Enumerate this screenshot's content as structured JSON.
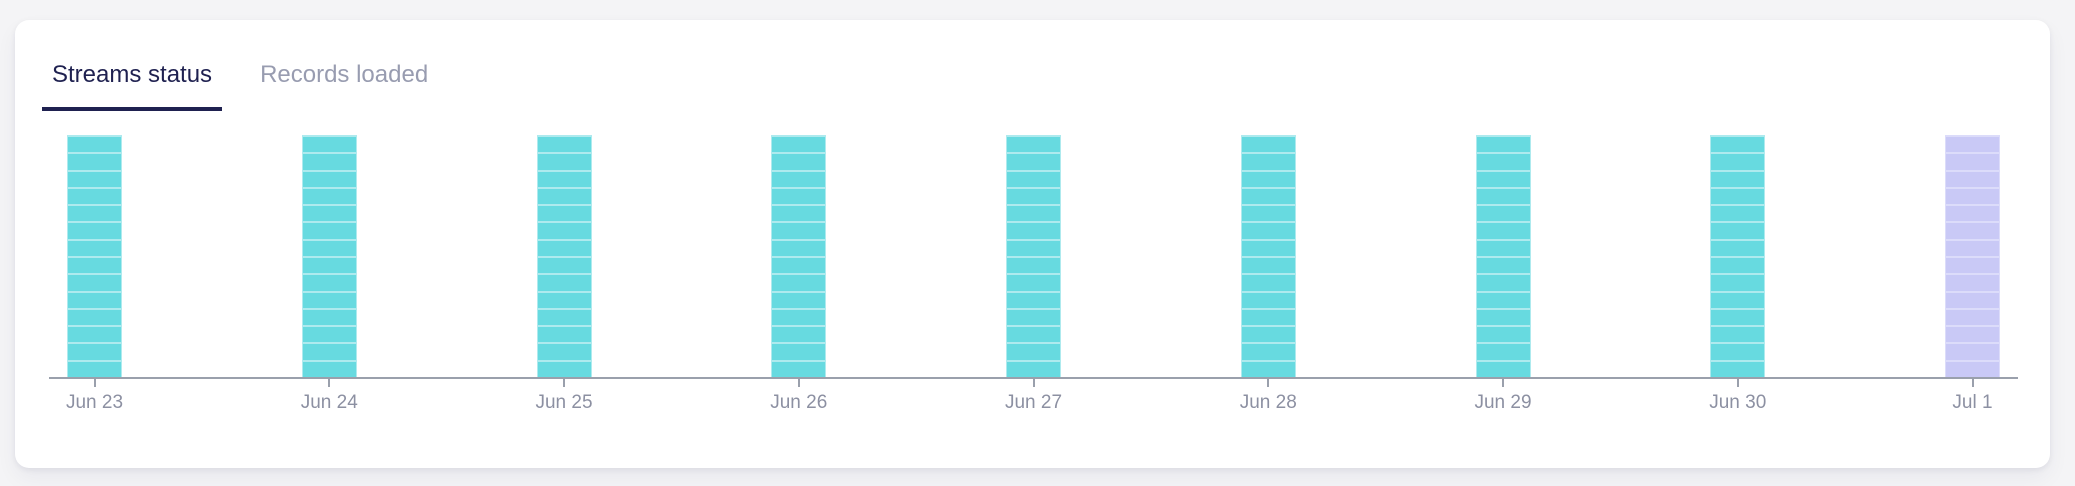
{
  "tabs": [
    {
      "label": "Streams status",
      "active": true
    },
    {
      "label": "Records loaded",
      "active": false
    }
  ],
  "chart_data": {
    "type": "bar",
    "subtype": "stacked-segment-status-bars",
    "title": "Streams status",
    "xlabel": "",
    "ylabel": "",
    "grid": false,
    "legend": "none",
    "categories": [
      "Jun 23",
      "Jun 24",
      "Jun 25",
      "Jun 26",
      "Jun 27",
      "Jun 28",
      "Jun 29",
      "Jun 30",
      "Jul 1"
    ],
    "bars": [
      {
        "label": "Jun 23",
        "segments": 14,
        "palette": "teal"
      },
      {
        "label": "Jun 24",
        "segments": 14,
        "palette": "teal"
      },
      {
        "label": "Jun 25",
        "segments": 14,
        "palette": "teal"
      },
      {
        "label": "Jun 26",
        "segments": 14,
        "palette": "teal"
      },
      {
        "label": "Jun 27",
        "segments": 14,
        "palette": "teal"
      },
      {
        "label": "Jun 28",
        "segments": 14,
        "palette": "teal"
      },
      {
        "label": "Jun 29",
        "segments": 14,
        "palette": "teal"
      },
      {
        "label": "Jun 30",
        "segments": 14,
        "palette": "teal"
      },
      {
        "label": "Jul 1",
        "segments": 14,
        "palette": "lavender"
      }
    ],
    "palettes": {
      "teal": {
        "fill": "#67DAE0",
        "edge": "#AEEAEE"
      },
      "lavender": {
        "fill": "#C9C9F6",
        "edge": "#DCDCFA"
      }
    }
  },
  "colors": {
    "page_bg": "#F4F4F6",
    "card_bg": "#FFFFFF",
    "active_tab": "#1F2150",
    "inactive_tab": "#989CB0",
    "axis": "#9AA0AC",
    "axis_label": "#8C90A2"
  }
}
